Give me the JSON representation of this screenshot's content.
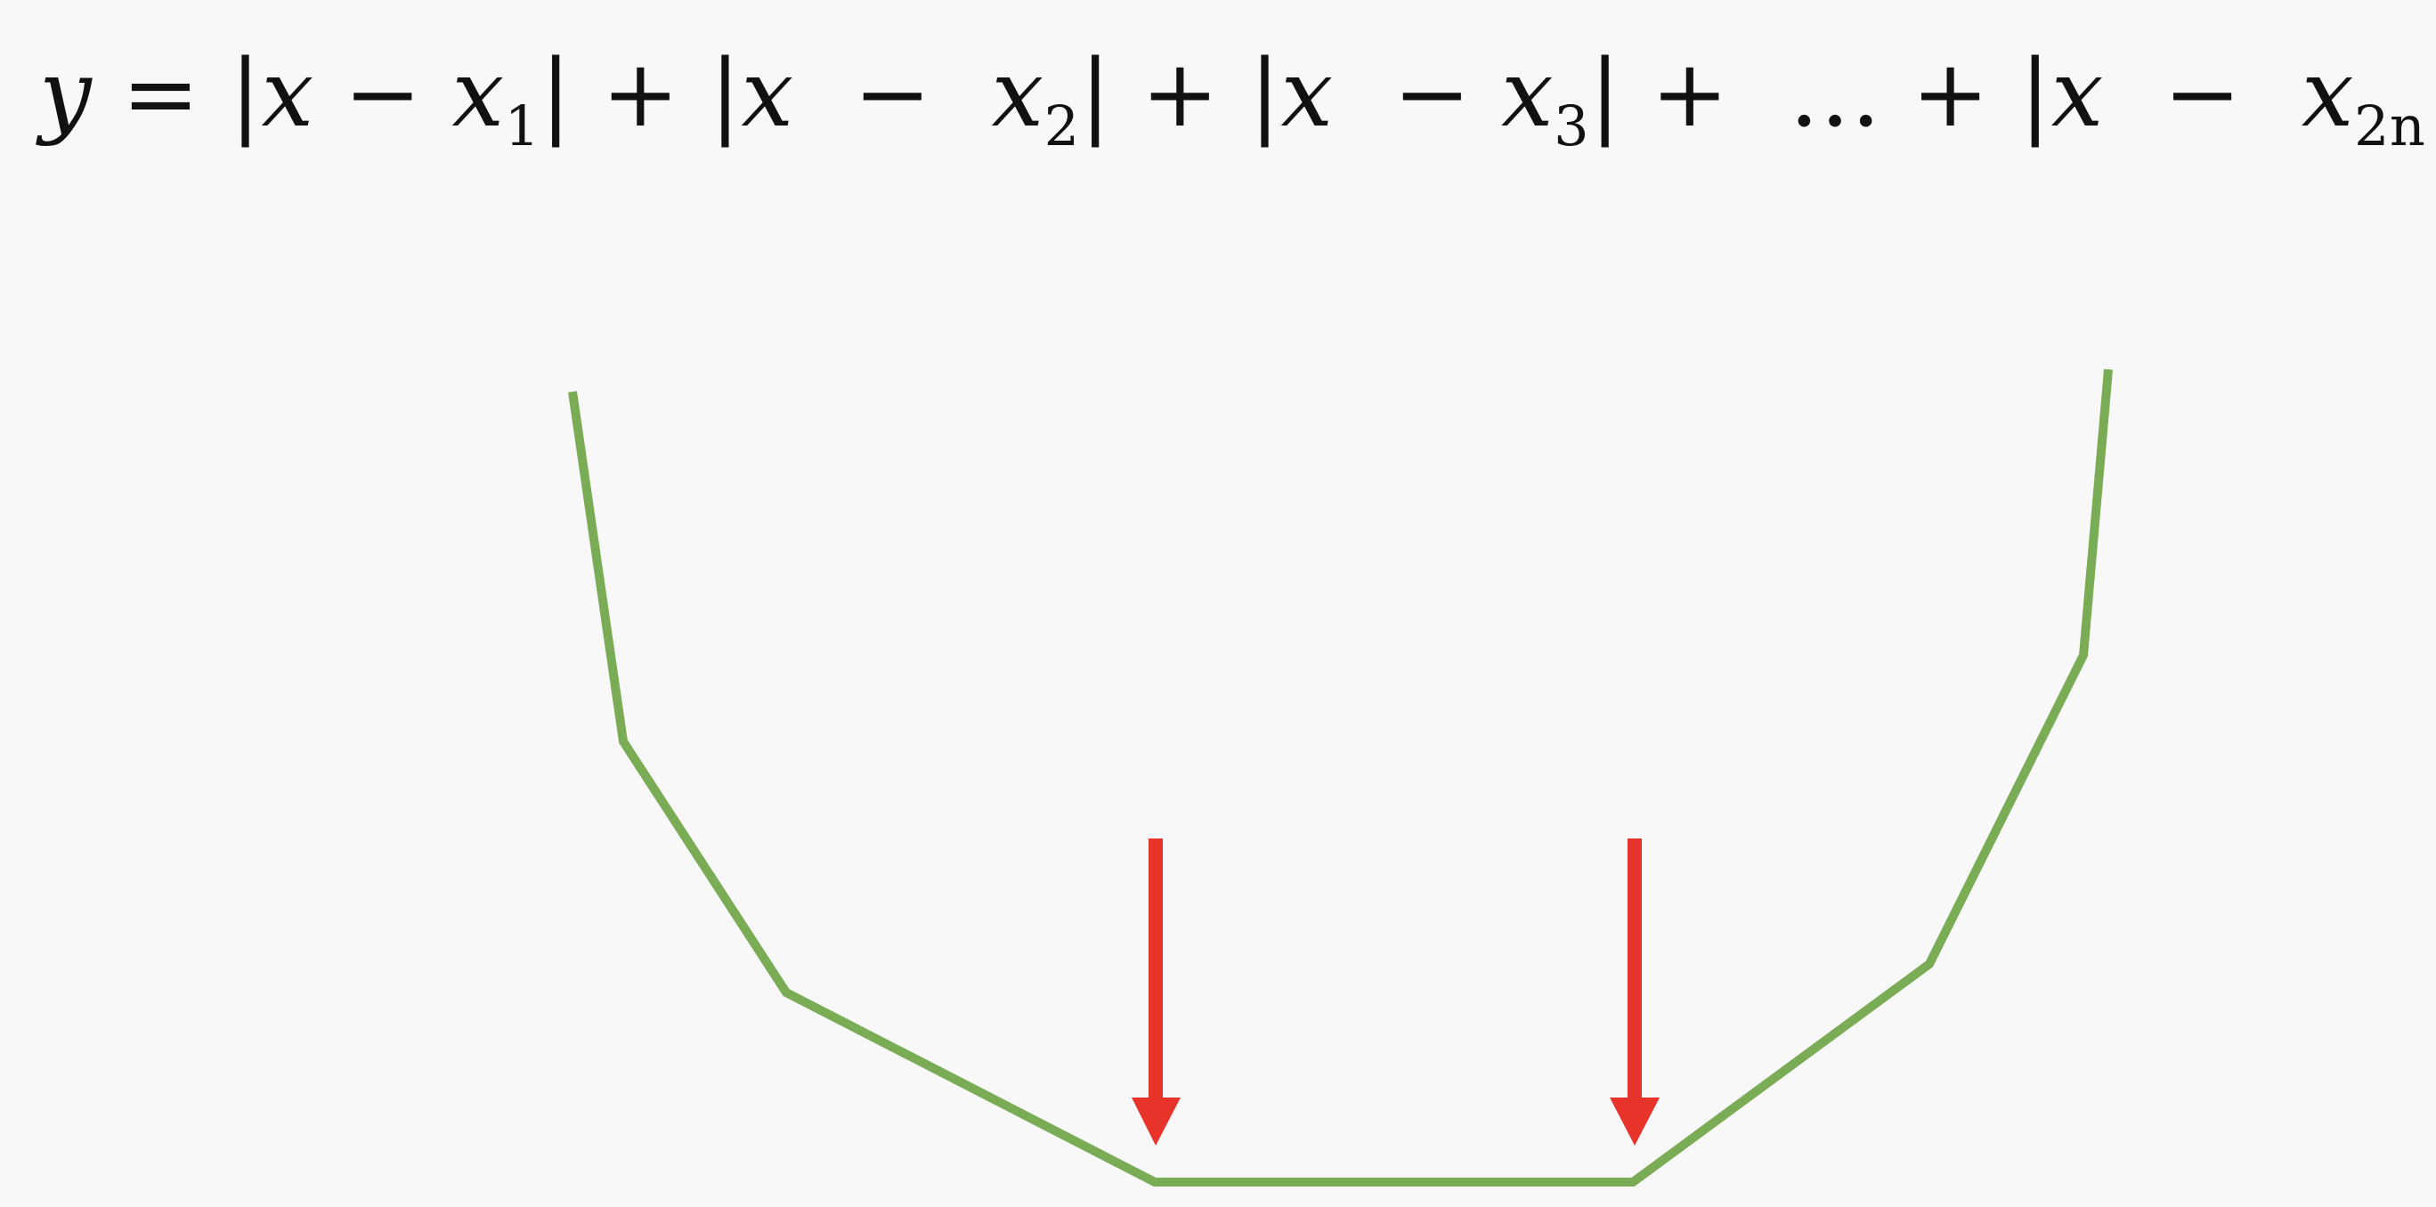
{
  "formula": {
    "lhs": "y",
    "equals": "=",
    "terms": [
      {
        "var": "x",
        "op": "−",
        "sub_var": "x",
        "sub": "1"
      },
      {
        "var": "x",
        "op": "−",
        "sub_var": "x",
        "sub": "2"
      },
      {
        "var": "x",
        "op": "−",
        "sub_var": "x",
        "sub": "3"
      },
      {
        "ellipsis": "…"
      },
      {
        "var": "x",
        "op": "−",
        "sub_var": "x",
        "sub": "2n"
      }
    ],
    "plus": "+"
  },
  "colors": {
    "background": "#f8f8f8",
    "curve": "#7aab55",
    "arrow": "#e8332a",
    "text": "#111111"
  },
  "diagram": {
    "description_kind": "piecewise-linear V curve with flat minimum between two median points",
    "arrow_count": 2
  }
}
